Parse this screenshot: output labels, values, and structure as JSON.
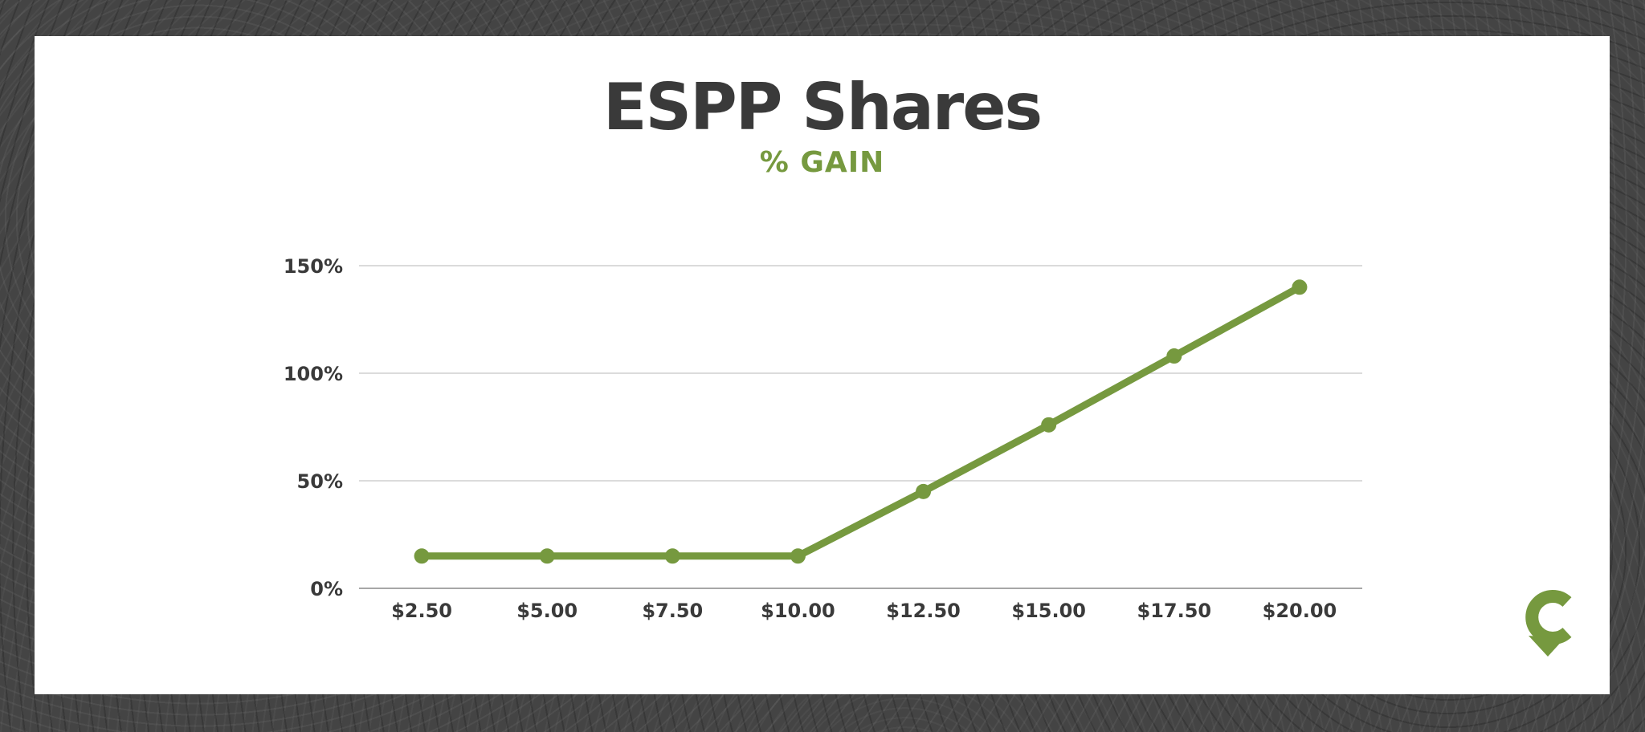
{
  "chart_data": {
    "type": "line",
    "title": "ESPP Shares",
    "subtitle": "% GAIN",
    "categories": [
      "$2.50",
      "$5.00",
      "$7.50",
      "$10.00",
      "$12.50",
      "$15.00",
      "$17.50",
      "$20.00"
    ],
    "series": [
      {
        "values": [
          15,
          15,
          15,
          15,
          45,
          76,
          108,
          140
        ]
      }
    ],
    "ylim": [
      0,
      150
    ],
    "yticks": [
      "0%",
      "50%",
      "100%",
      "150%"
    ],
    "ytick_values": [
      0,
      50,
      100,
      150
    ],
    "grid": true,
    "legend": "none",
    "xlabel": "",
    "ylabel": ""
  },
  "colors": {
    "title": "#3a3a3a",
    "accent": "#76993f",
    "grid": "#cfcfcf",
    "text": "#3a3a3a",
    "background": "#444444"
  },
  "icons": {
    "logo": "brand-logo-icon"
  }
}
